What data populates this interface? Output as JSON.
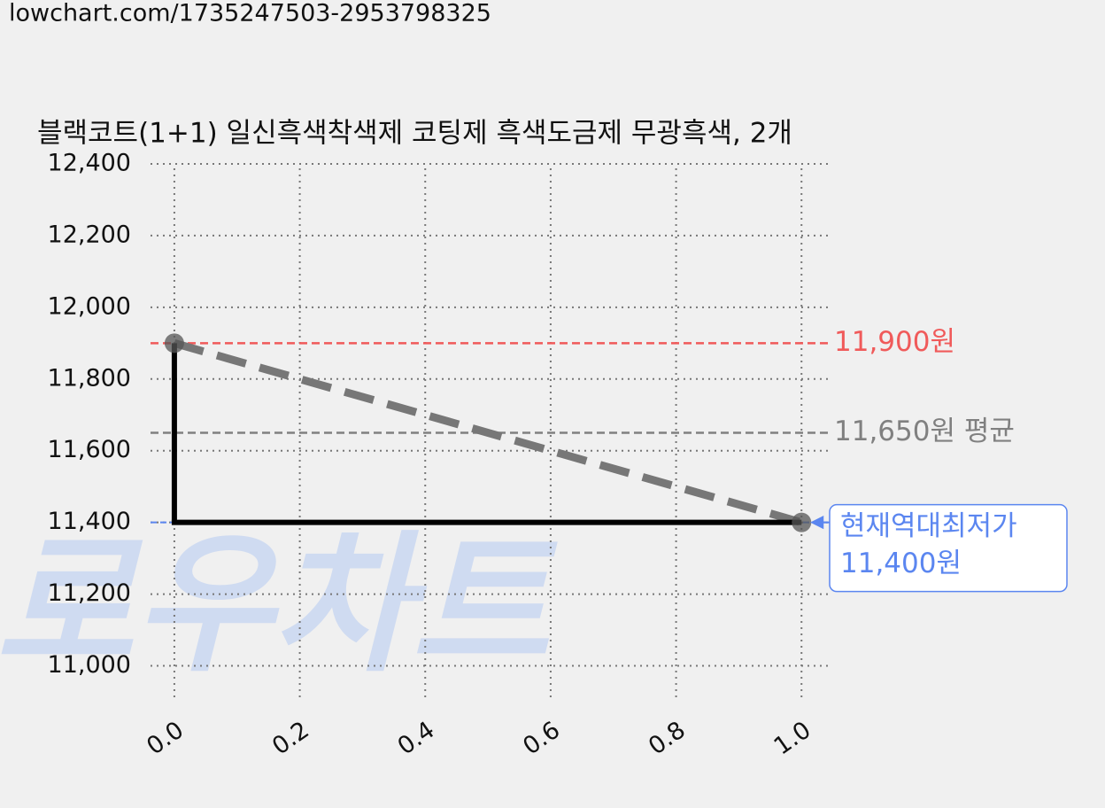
{
  "source_url": "lowchart.com/1735247503-2953798325",
  "watermark": "로우차트",
  "chart_data": {
    "type": "line",
    "step": true,
    "title": "블랙코트(1+1) 일신흑색착색제 코팅제 흑색도금제 무광흑색, 2개",
    "x": [
      0,
      1
    ],
    "values": [
      11900,
      11400
    ],
    "color": "#000000",
    "trend_color": "#777777",
    "marker_color": "#555555",
    "xlim": [
      -0.038,
      1.042
    ],
    "ylim": [
      10900,
      12400
    ],
    "xticks": [
      {
        "value": 0,
        "label": "0.0"
      },
      {
        "value": 0.2,
        "label": "0.2"
      },
      {
        "value": 0.4,
        "label": "0.4"
      },
      {
        "value": 0.6,
        "label": "0.6"
      },
      {
        "value": 0.8,
        "label": "0.8"
      },
      {
        "value": 1,
        "label": "1.0"
      }
    ],
    "yticks": [
      {
        "value": 11000,
        "label": "11,000"
      },
      {
        "value": 11200,
        "label": "11,200"
      },
      {
        "value": 11400,
        "label": "11,400"
      },
      {
        "value": 11600,
        "label": "11,600"
      },
      {
        "value": 11800,
        "label": "11,800"
      },
      {
        "value": 12000,
        "label": "12,000"
      },
      {
        "value": 12200,
        "label": "12,200"
      },
      {
        "value": 12400,
        "label": "12,400"
      }
    ],
    "grid": true,
    "hlines": [
      {
        "value": 11900,
        "label": "11,900원",
        "color": "#f05a5a"
      },
      {
        "value": 11650,
        "label": "11,650원 평균",
        "color": "#808080"
      }
    ],
    "annotation": {
      "value": 11400,
      "text": "현재역대최저가",
      "value_label": "11,400원",
      "color": "#5b86f0"
    }
  }
}
